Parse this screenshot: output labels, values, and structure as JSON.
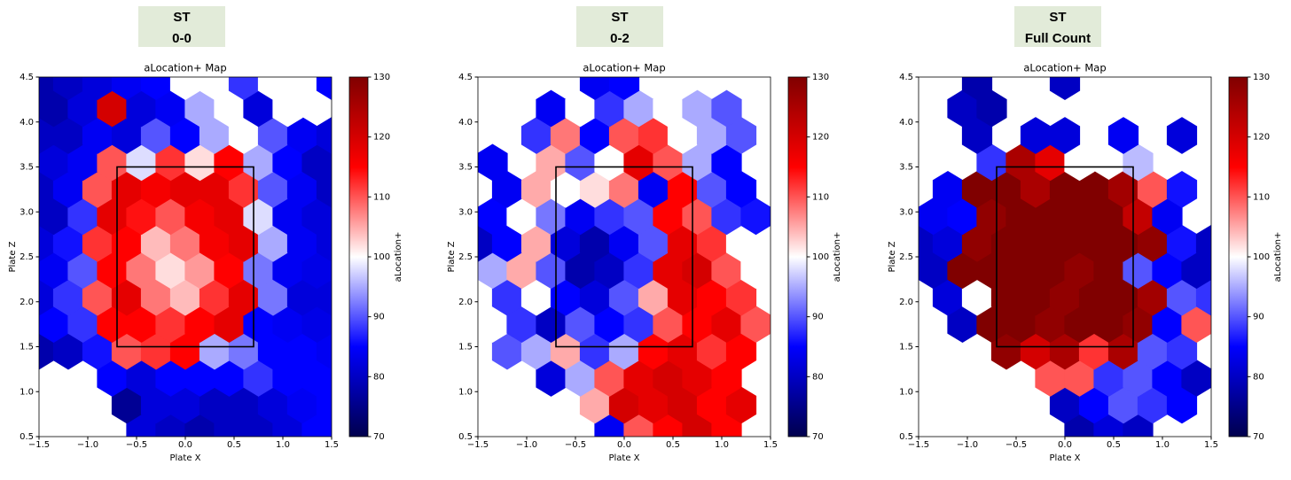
{
  "chart_data": [
    {
      "type": "hexbin",
      "panel_label": [
        "ST",
        "0-0"
      ],
      "title": "aLocation+ Map",
      "xlabel": "Plate X",
      "ylabel": "Plate Z",
      "colorbar_label": "aLocation+",
      "colormap": "seismic",
      "xlim": [
        -1.5,
        1.5
      ],
      "ylim": [
        0.5,
        4.5
      ],
      "clim": [
        70,
        130
      ],
      "xticks": [
        {
          "value": -1.5,
          "label": "−1.5"
        },
        {
          "value": -1,
          "label": "−1.0"
        },
        {
          "value": -0.5,
          "label": "−0.5"
        },
        {
          "value": 0,
          "label": "0.0"
        },
        0.5,
        {
          "value": 1,
          "label": "1.0"
        },
        1.5
      ],
      "yticks": [
        0.5,
        {
          "value": 1,
          "label": "1.0"
        },
        1.5,
        {
          "value": 2,
          "label": "2.0"
        },
        2.5,
        {
          "value": 3,
          "label": "3.0"
        },
        3.5,
        {
          "value": 4,
          "label": "4.0"
        },
        4.5
      ],
      "cticks": [
        70,
        80,
        90,
        100,
        110,
        120,
        130
      ],
      "zone": {
        "x": [
          -0.7,
          0.7
        ],
        "z": [
          1.5,
          3.5
        ]
      },
      "x": [
        [
          -1.35,
          -1.05,
          -0.75,
          -0.45,
          -0.15,
          0.15,
          0.45,
          0.75,
          1.05,
          1.35
        ],
        [
          -1.5,
          -1.2,
          -0.9,
          -0.6,
          -0.3,
          0,
          0.3,
          0.6,
          0.9,
          1.2,
          1.5
        ]
      ],
      "y": [
        0.55,
        0.85,
        1.15,
        1.45,
        1.75,
        2.05,
        2.35,
        2.65,
        2.95,
        3.25,
        3.55,
        3.85,
        4.15,
        4.45
      ],
      "values": [
        [
          null,
          null,
          null,
          82,
          80,
          78,
          80,
          80,
          82,
          85
        ],
        [
          null,
          null,
          null,
          76,
          82,
          82,
          80,
          80,
          82,
          84,
          85
        ],
        [
          null,
          null,
          85,
          82,
          85,
          85,
          85,
          88,
          85,
          85
        ],
        [
          78,
          80,
          86,
          110,
          112,
          115,
          95,
          92,
          85,
          85,
          84
        ],
        [
          85,
          88,
          115,
          115,
          112,
          115,
          118,
          85,
          84,
          83
        ],
        [
          82,
          88,
          110,
          118,
          108,
          104,
          112,
          118,
          92,
          82,
          82
        ],
        [
          84,
          90,
          115,
          108,
          102,
          106,
          115,
          92,
          84,
          83
        ],
        [
          82,
          86,
          112,
          115,
          104,
          108,
          116,
          118,
          95,
          84,
          82
        ],
        [
          80,
          88,
          118,
          114,
          110,
          116,
          118,
          98,
          84,
          82
        ],
        [
          80,
          84,
          110,
          118,
          116,
          118,
          118,
          112,
          90,
          84,
          80
        ],
        [
          82,
          84,
          110,
          98,
          112,
          102,
          115,
          95,
          85,
          80
        ],
        [
          80,
          80,
          84,
          82,
          90,
          85,
          95,
          100,
          90,
          84,
          82
        ],
        [
          78,
          82,
          120,
          82,
          84,
          95,
          100,
          82,
          100,
          null
        ],
        [
          78,
          80,
          82,
          84,
          85,
          100,
          100,
          88,
          100,
          100,
          85
        ]
      ]
    },
    {
      "type": "hexbin",
      "panel_label": [
        "ST",
        "0-2"
      ],
      "title": "aLocation+ Map",
      "xlabel": "Plate X",
      "ylabel": "Plate Z",
      "colorbar_label": "aLocation+",
      "colormap": "seismic",
      "xlim": [
        -1.5,
        1.5
      ],
      "ylim": [
        0.5,
        4.5
      ],
      "clim": [
        70,
        130
      ],
      "xticks": [
        {
          "value": -1.5,
          "label": "−1.5"
        },
        {
          "value": -1,
          "label": "−1.0"
        },
        {
          "value": -0.5,
          "label": "−0.5"
        },
        {
          "value": 0,
          "label": "0.0"
        },
        0.5,
        {
          "value": 1,
          "label": "1.0"
        },
        1.5
      ],
      "yticks": [
        0.5,
        {
          "value": 1,
          "label": "1.0"
        },
        1.5,
        {
          "value": 2,
          "label": "2.0"
        },
        2.5,
        {
          "value": 3,
          "label": "3.0"
        },
        3.5,
        {
          "value": 4,
          "label": "4.0"
        },
        4.5
      ],
      "cticks": [
        70,
        80,
        90,
        100,
        110,
        120,
        130
      ],
      "zone": {
        "x": [
          -0.7,
          0.7
        ],
        "z": [
          1.5,
          3.5
        ]
      },
      "x": [
        [
          -1.35,
          -1.05,
          -0.75,
          -0.45,
          -0.15,
          0.15,
          0.45,
          0.75,
          1.05,
          1.35
        ],
        [
          -1.5,
          -1.2,
          -0.9,
          -0.6,
          -0.3,
          0,
          0.3,
          0.6,
          0.9,
          1.2,
          1.5
        ]
      ],
      "y": [
        0.55,
        0.85,
        1.15,
        1.45,
        1.75,
        2.05,
        2.35,
        2.65,
        2.95,
        3.25,
        3.55,
        3.85,
        4.15,
        4.45
      ],
      "values": [
        [
          null,
          null,
          null,
          null,
          84,
          110,
          115,
          120,
          115,
          null
        ],
        [
          null,
          null,
          null,
          null,
          105,
          120,
          118,
          120,
          115,
          118,
          null
        ],
        [
          null,
          null,
          82,
          95,
          110,
          118,
          120,
          118,
          115,
          null
        ],
        [
          null,
          90,
          95,
          105,
          88,
          95,
          115,
          118,
          112,
          115,
          null
        ],
        [
          100,
          88,
          80,
          90,
          85,
          88,
          110,
          115,
          118,
          110
        ],
        [
          null,
          88,
          100,
          85,
          82,
          90,
          105,
          118,
          115,
          112,
          null
        ],
        [
          95,
          105,
          90,
          78,
          80,
          88,
          118,
          120,
          110,
          100
        ],
        [
          80,
          85,
          105,
          82,
          78,
          84,
          90,
          118,
          112,
          100,
          null
        ],
        [
          85,
          100,
          92,
          84,
          88,
          90,
          115,
          110,
          88,
          86
        ],
        [
          null,
          84,
          105,
          100,
          102,
          108,
          84,
          115,
          90,
          85,
          null
        ],
        [
          84,
          null,
          105,
          90,
          100,
          118,
          110,
          95,
          85,
          null
        ],
        [
          null,
          null,
          88,
          108,
          85,
          110,
          112,
          100,
          95,
          90,
          null
        ],
        [
          null,
          null,
          84,
          100,
          88,
          95,
          100,
          95,
          90,
          null
        ],
        [
          null,
          null,
          null,
          null,
          84,
          85,
          null,
          null,
          null,
          null,
          null
        ]
      ]
    },
    {
      "type": "hexbin",
      "panel_label": [
        "ST",
        "Full Count"
      ],
      "title": "aLocation+ Map",
      "xlabel": "Plate X",
      "ylabel": "Plate Z",
      "colorbar_label": "aLocation+",
      "colormap": "seismic",
      "xlim": [
        -1.5,
        1.5
      ],
      "ylim": [
        0.5,
        4.5
      ],
      "clim": [
        70,
        130
      ],
      "xticks": [
        {
          "value": -1.5,
          "label": "−1.5"
        },
        {
          "value": -1,
          "label": "−1.0"
        },
        {
          "value": -0.5,
          "label": "−0.5"
        },
        {
          "value": 0,
          "label": "0.0"
        },
        0.5,
        {
          "value": 1,
          "label": "1.0"
        },
        1.5
      ],
      "yticks": [
        0.5,
        {
          "value": 1,
          "label": "1.0"
        },
        1.5,
        {
          "value": 2,
          "label": "2.0"
        },
        2.5,
        {
          "value": 3,
          "label": "3.0"
        },
        3.5,
        {
          "value": 4,
          "label": "4.0"
        },
        4.5
      ],
      "cticks": [
        70,
        80,
        90,
        100,
        110,
        120,
        130
      ],
      "zone": {
        "x": [
          -0.7,
          0.7
        ],
        "z": [
          1.5,
          3.5
        ]
      },
      "x": [
        [
          -1.35,
          -1.05,
          -0.75,
          -0.45,
          -0.15,
          0.15,
          0.45,
          0.75,
          1.05,
          1.35
        ],
        [
          -1.5,
          -1.2,
          -0.9,
          -0.6,
          -0.3,
          0,
          0.3,
          0.6,
          0.9,
          1.2,
          1.5
        ]
      ],
      "y": [
        0.55,
        0.85,
        1.15,
        1.45,
        1.75,
        2.05,
        2.35,
        2.65,
        2.95,
        3.25,
        3.55,
        3.85,
        4.15,
        4.45
      ],
      "values": [
        [
          null,
          null,
          null,
          null,
          null,
          78,
          82,
          80,
          null,
          null
        ],
        [
          null,
          null,
          null,
          null,
          null,
          80,
          85,
          90,
          88,
          85,
          null
        ],
        [
          null,
          null,
          null,
          null,
          110,
          110,
          88,
          90,
          85,
          80
        ],
        [
          null,
          null,
          null,
          128,
          120,
          125,
          112,
          125,
          90,
          88,
          null
        ],
        [
          null,
          80,
          130,
          130,
          128,
          130,
          130,
          128,
          85,
          110
        ],
        [
          null,
          82,
          100,
          130,
          130,
          128,
          130,
          130,
          126,
          90,
          88
        ],
        [
          80,
          130,
          130,
          130,
          130,
          128,
          130,
          90,
          85,
          80
        ],
        [
          80,
          82,
          128,
          130,
          130,
          130,
          130,
          130,
          128,
          86,
          80
        ],
        [
          84,
          85,
          128,
          130,
          130,
          130,
          130,
          122,
          84,
          null
        ],
        [
          null,
          84,
          130,
          130,
          125,
          130,
          130,
          126,
          110,
          86,
          null
        ],
        [
          null,
          null,
          88,
          125,
          118,
          100,
          null,
          96,
          null,
          null
        ],
        [
          null,
          null,
          80,
          null,
          82,
          82,
          null,
          84,
          null,
          82,
          null
        ],
        [
          null,
          80,
          78,
          null,
          null,
          null,
          null,
          null,
          null,
          null
        ],
        [
          null,
          null,
          78,
          null,
          null,
          80,
          null,
          null,
          null,
          null,
          null
        ]
      ]
    }
  ]
}
